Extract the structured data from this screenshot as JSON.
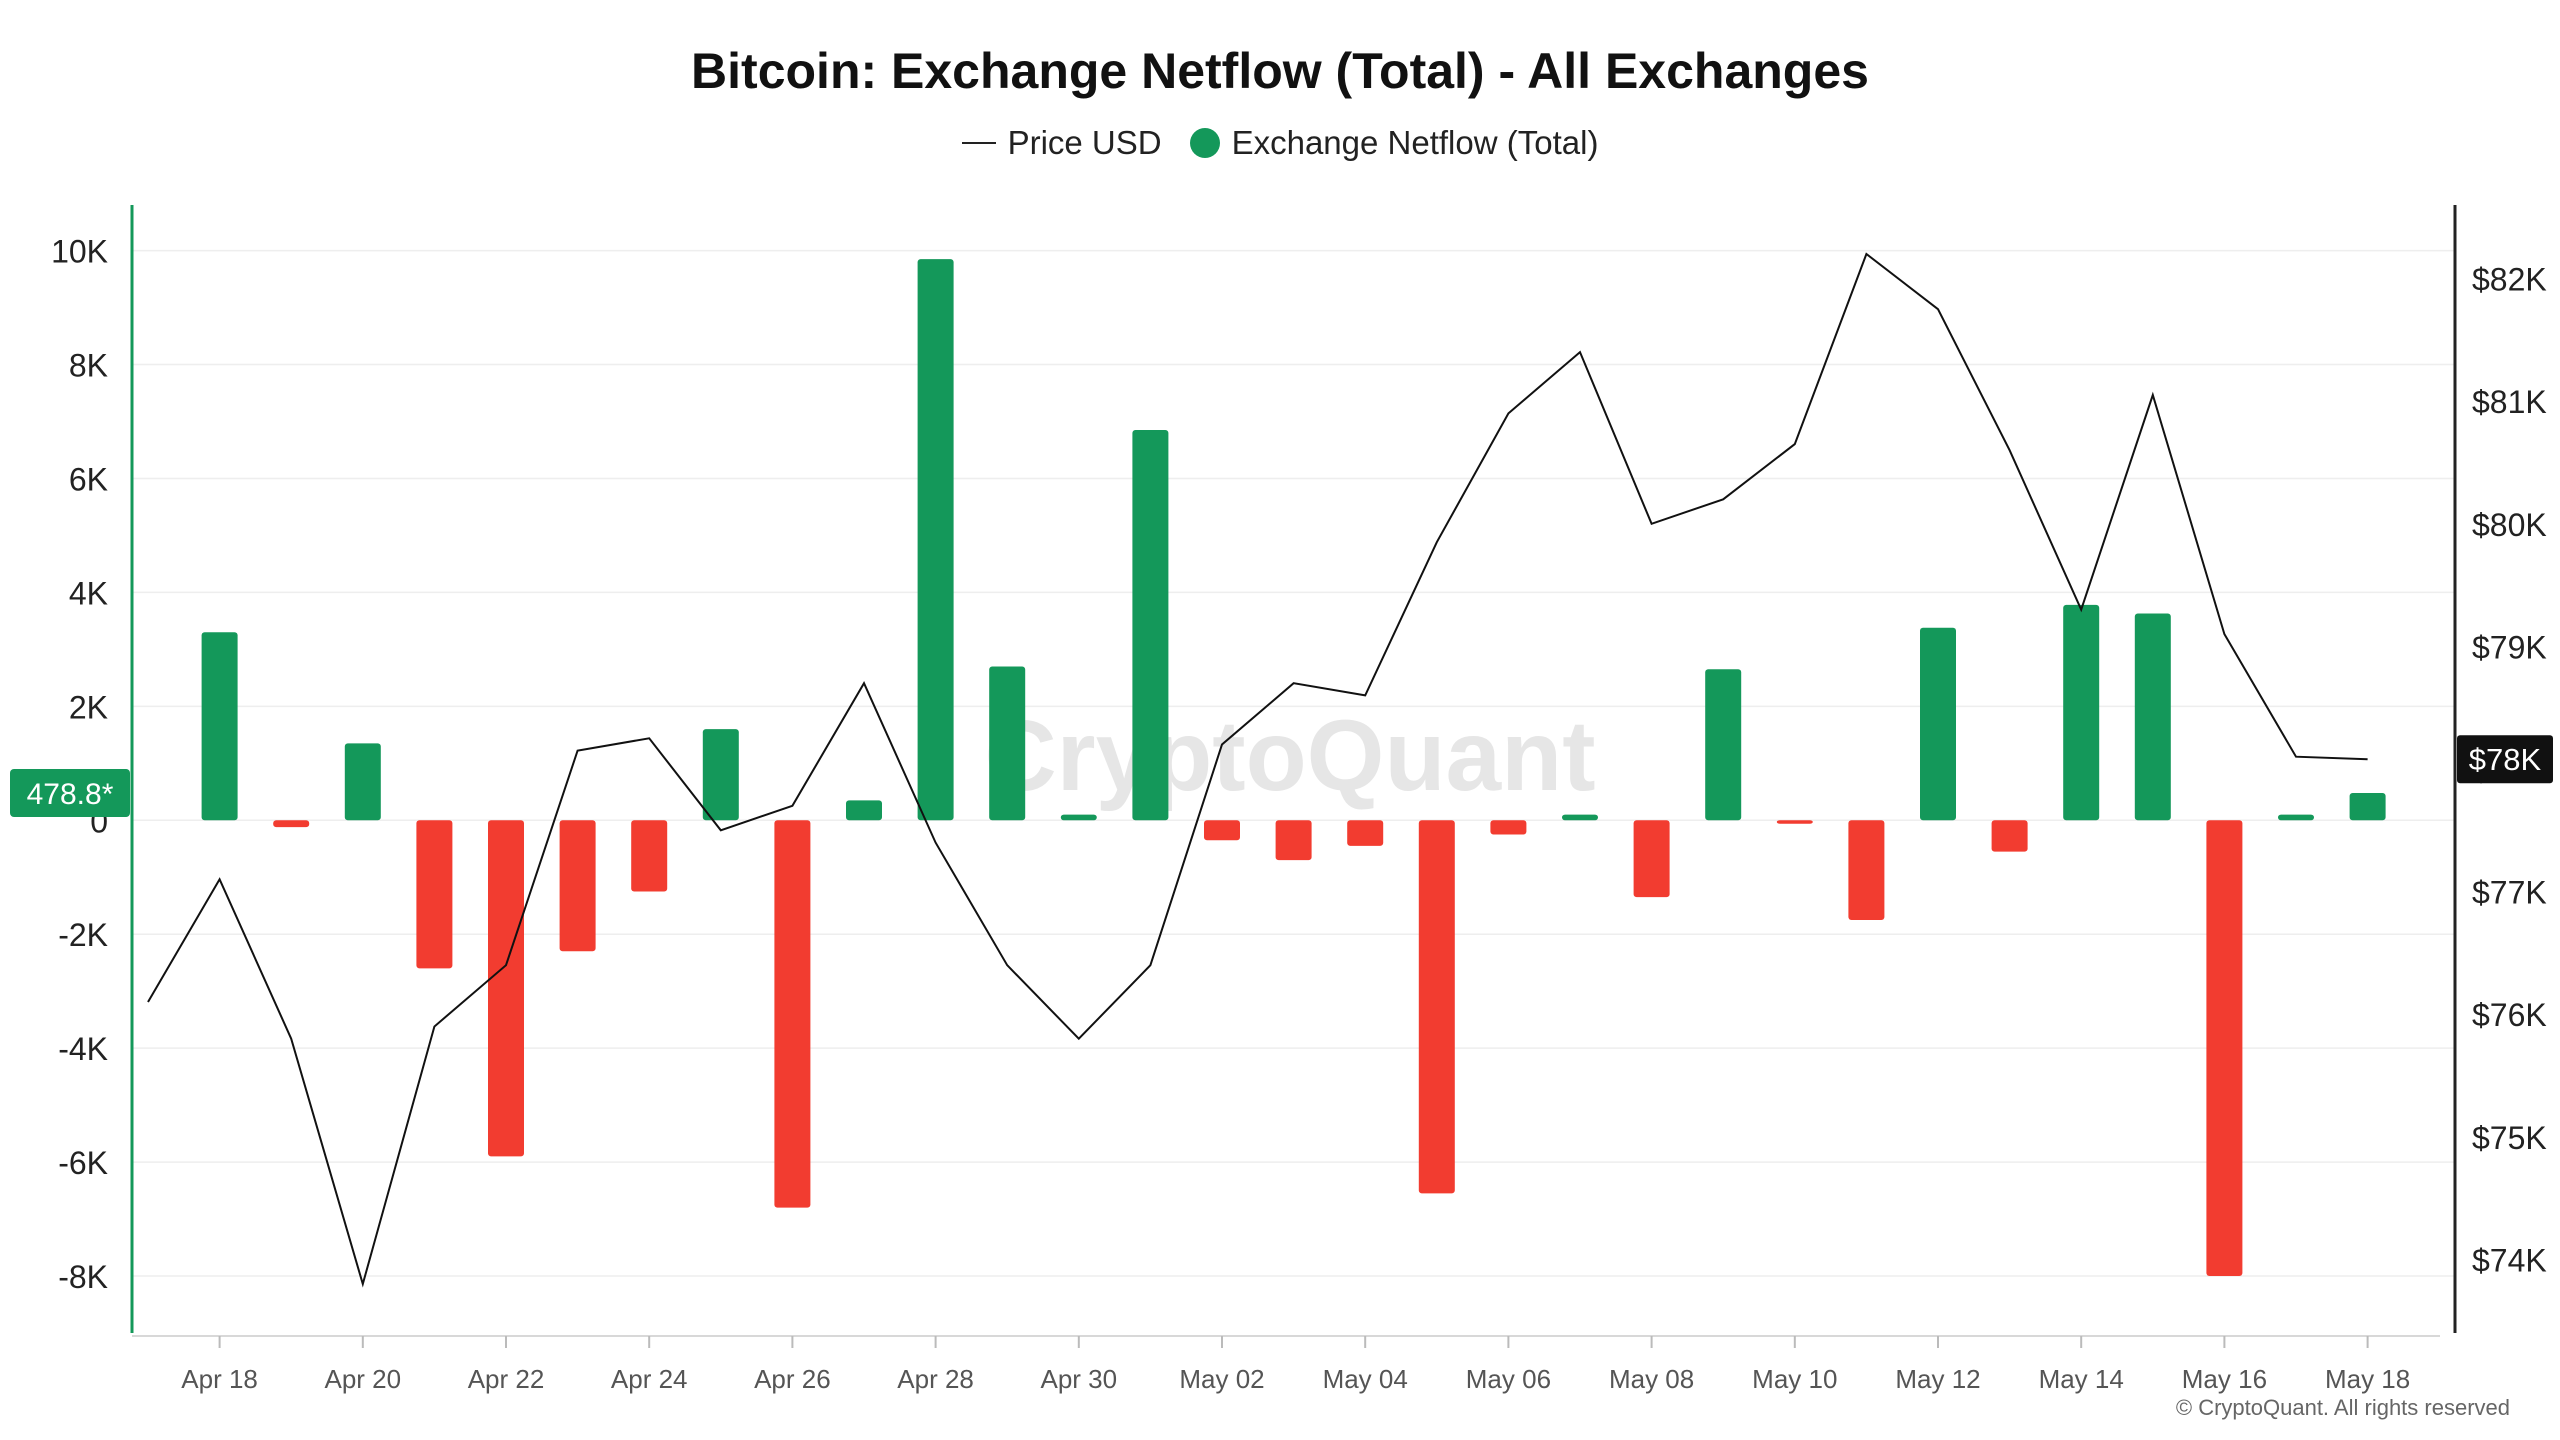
{
  "chart_data": {
    "type": "bar",
    "title": "Bitcoin: Exchange Netflow (Total) - All Exchanges",
    "legend": [
      {
        "label": "Price USD",
        "symbol": "line",
        "color": "#111111"
      },
      {
        "label": "Exchange Netflow (Total)",
        "symbol": "dot",
        "color": "#14985a"
      }
    ],
    "legend_position": "top-center",
    "watermark": "CryptoQuant",
    "copyright": "© CryptoQuant. All rights reserved",
    "current_value_label": "478.8*",
    "current_price_label": "$78K",
    "x_start": "Apr 17",
    "x_ticks": [
      "Apr 18",
      "Apr 20",
      "Apr 22",
      "Apr 24",
      "Apr 26",
      "Apr 28",
      "Apr 30",
      "May 02",
      "May 04",
      "May 06",
      "May 08",
      "May 10",
      "May 12",
      "May 14",
      "May 16",
      "May 18"
    ],
    "left_axis": {
      "ylim": [
        -9000,
        10800
      ],
      "ticks": [
        -8000,
        -6000,
        -4000,
        -2000,
        0,
        2000,
        4000,
        6000,
        8000,
        10000
      ],
      "tick_labels": [
        "-8K",
        "-6K",
        "-4K",
        "-2K",
        "0",
        "2K",
        "4K",
        "6K",
        "8K",
        "10K"
      ]
    },
    "right_axis": {
      "ylim": [
        73400,
        82600
      ],
      "ticks": [
        74000,
        75000,
        76000,
        77000,
        78000,
        79000,
        80000,
        81000,
        82000
      ],
      "tick_labels": [
        "$74K",
        "$75K",
        "$76K",
        "$77K",
        "$78K",
        "$79K",
        "$80K",
        "$81K",
        "$82K"
      ]
    },
    "grid": true,
    "colors": {
      "positive": "#14985a",
      "negative": "#f23c30",
      "price_line": "#111111",
      "grid": "#eeeeee"
    },
    "series": [
      {
        "name": "Exchange Netflow (Total)",
        "axis": "left",
        "x": [
          "Apr 18",
          "Apr 19",
          "Apr 20",
          "Apr 21",
          "Apr 22",
          "Apr 23",
          "Apr 24",
          "Apr 25",
          "Apr 26",
          "Apr 27",
          "Apr 28",
          "Apr 29",
          "Apr 30",
          "May 01",
          "May 02",
          "May 03",
          "May 04",
          "May 05",
          "May 06",
          "May 07",
          "May 08",
          "May 09",
          "May 10",
          "May 11",
          "May 12",
          "May 13",
          "May 14",
          "May 15",
          "May 16",
          "May 17",
          "May 18"
        ],
        "values": [
          3300,
          -120,
          1350,
          -2600,
          -5900,
          -2300,
          -1250,
          1600,
          -6800,
          350,
          9850,
          2700,
          100,
          6850,
          -350,
          -700,
          -450,
          -6550,
          -250,
          100,
          -1350,
          2650,
          -60,
          -1750,
          3380,
          -550,
          3780,
          3630,
          -8000,
          100,
          479
        ]
      },
      {
        "name": "Price USD",
        "axis": "right",
        "x": [
          "Apr 17",
          "Apr 18",
          "Apr 19",
          "Apr 20",
          "Apr 21",
          "Apr 22",
          "Apr 23",
          "Apr 24",
          "Apr 25",
          "Apr 26",
          "Apr 27",
          "Apr 28",
          "Apr 29",
          "Apr 30",
          "May 01",
          "May 02",
          "May 03",
          "May 04",
          "May 05",
          "May 06",
          "May 07",
          "May 08",
          "May 09",
          "May 10",
          "May 11",
          "May 12",
          "May 13",
          "May 14",
          "May 15",
          "May 16",
          "May 17",
          "May 18"
        ],
        "values": [
          76100,
          77100,
          75800,
          73800,
          75900,
          76400,
          78150,
          78250,
          77500,
          77700,
          78700,
          77400,
          76400,
          75800,
          76400,
          78200,
          78700,
          78600,
          79850,
          80900,
          81400,
          80000,
          80200,
          80650,
          82200,
          81750,
          80600,
          79300,
          81050,
          79100,
          78100,
          78080
        ]
      }
    ]
  }
}
